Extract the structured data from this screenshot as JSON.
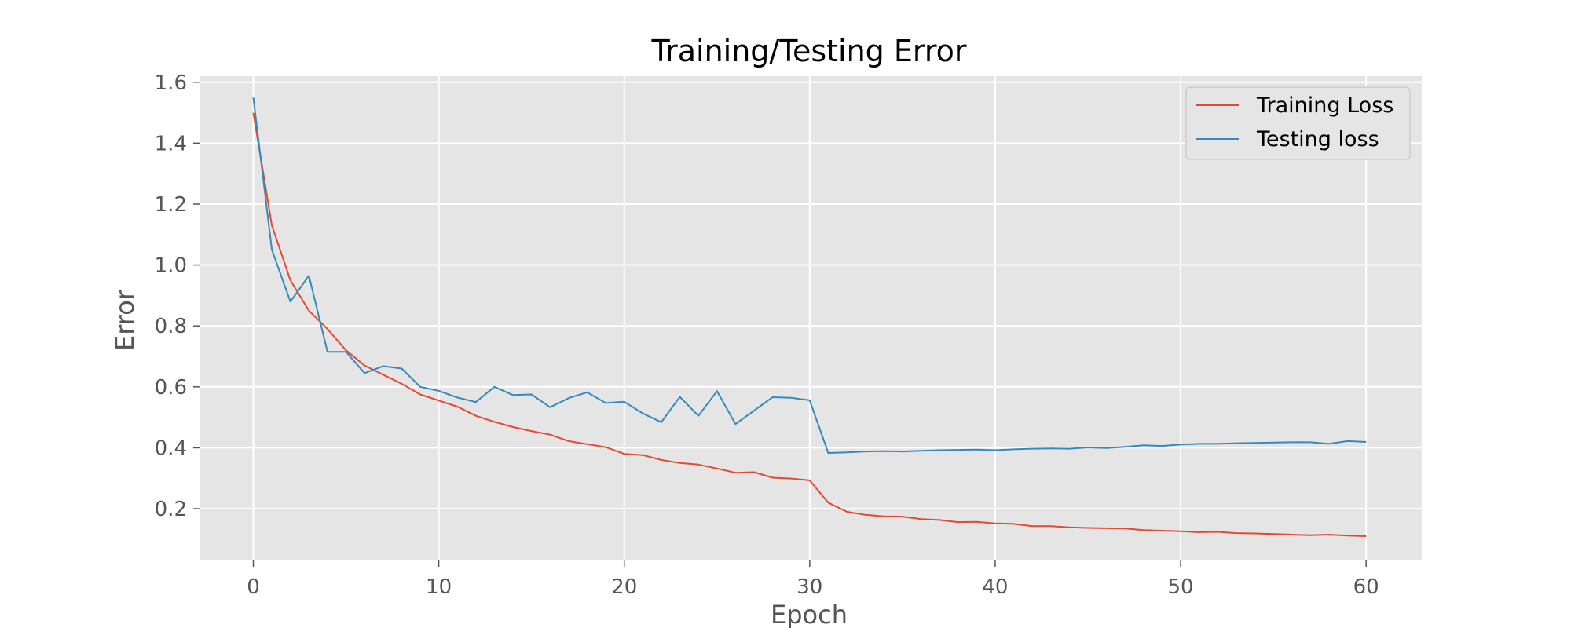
{
  "chart_data": {
    "type": "line",
    "title": "Training/Testing Error",
    "xlabel": "Epoch",
    "ylabel": "Error",
    "xlim": [
      -2.9,
      63
    ],
    "ylim": [
      0.03,
      1.62
    ],
    "xticks": [
      0,
      10,
      20,
      30,
      40,
      50,
      60
    ],
    "yticks": [
      0.2,
      0.4,
      0.6,
      0.8,
      1.0,
      1.2,
      1.4,
      1.6
    ],
    "xtick_labels": [
      "0",
      "10",
      "20",
      "30",
      "40",
      "50",
      "60"
    ],
    "ytick_labels": [
      "0.2",
      "0.4",
      "0.6",
      "0.8",
      "1.0",
      "1.2",
      "1.4",
      "1.6"
    ],
    "grid": true,
    "legend_position": "top-right",
    "background": "#e5e5e5",
    "series": [
      {
        "name": "Training Loss",
        "color": "#e24a33",
        "x": [
          0,
          1,
          2,
          3,
          4,
          5,
          6,
          7,
          8,
          9,
          10,
          11,
          12,
          13,
          14,
          15,
          16,
          17,
          18,
          19,
          20,
          21,
          22,
          23,
          24,
          25,
          26,
          27,
          28,
          29,
          30,
          31,
          32,
          33,
          34,
          35,
          36,
          37,
          38,
          39,
          40,
          41,
          42,
          43,
          44,
          45,
          46,
          47,
          48,
          49,
          50,
          51,
          52,
          53,
          54,
          55,
          56,
          57,
          58,
          59,
          60
        ],
        "values": [
          1.5,
          1.13,
          0.95,
          0.85,
          0.79,
          0.72,
          0.67,
          0.64,
          0.61,
          0.575,
          0.555,
          0.535,
          0.505,
          0.485,
          0.468,
          0.455,
          0.443,
          0.422,
          0.412,
          0.402,
          0.38,
          0.376,
          0.36,
          0.35,
          0.345,
          0.332,
          0.318,
          0.32,
          0.302,
          0.299,
          0.293,
          0.22,
          0.19,
          0.18,
          0.175,
          0.174,
          0.166,
          0.163,
          0.156,
          0.157,
          0.152,
          0.15,
          0.143,
          0.143,
          0.139,
          0.137,
          0.136,
          0.135,
          0.13,
          0.128,
          0.126,
          0.123,
          0.124,
          0.12,
          0.119,
          0.117,
          0.115,
          0.113,
          0.115,
          0.112,
          0.11
        ]
      },
      {
        "name": "Testing loss",
        "color": "#348abd",
        "x": [
          0,
          1,
          2,
          3,
          4,
          5,
          6,
          7,
          8,
          9,
          10,
          11,
          12,
          13,
          14,
          15,
          16,
          17,
          18,
          19,
          20,
          21,
          22,
          23,
          24,
          25,
          26,
          27,
          28,
          29,
          30,
          31,
          32,
          33,
          34,
          35,
          36,
          37,
          38,
          39,
          40,
          41,
          42,
          43,
          44,
          45,
          46,
          47,
          48,
          49,
          50,
          51,
          52,
          53,
          54,
          55,
          56,
          57,
          58,
          59,
          60
        ],
        "values": [
          1.55,
          1.05,
          0.88,
          0.965,
          0.715,
          0.715,
          0.645,
          0.668,
          0.66,
          0.6,
          0.587,
          0.565,
          0.55,
          0.6,
          0.573,
          0.575,
          0.533,
          0.563,
          0.582,
          0.547,
          0.551,
          0.513,
          0.484,
          0.567,
          0.505,
          0.586,
          0.478,
          0.522,
          0.566,
          0.564,
          0.556,
          0.383,
          0.385,
          0.388,
          0.389,
          0.388,
          0.39,
          0.392,
          0.393,
          0.394,
          0.392,
          0.395,
          0.397,
          0.398,
          0.397,
          0.401,
          0.399,
          0.403,
          0.408,
          0.406,
          0.411,
          0.413,
          0.413,
          0.415,
          0.416,
          0.417,
          0.418,
          0.418,
          0.413,
          0.422,
          0.419
        ]
      }
    ]
  }
}
